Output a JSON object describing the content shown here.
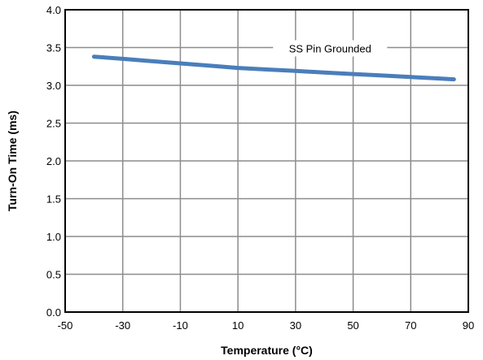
{
  "chart_data": {
    "type": "line",
    "xlabel": "Temperature (°C)",
    "ylabel": "Turn-On Time (ms)",
    "xlim": [
      -50,
      90
    ],
    "ylim": [
      0.0,
      4.0
    ],
    "x_ticks": [
      -50,
      -30,
      -10,
      10,
      30,
      50,
      70,
      90
    ],
    "x_tick_labels": [
      "-50",
      "-30",
      "-10",
      "10",
      "30",
      "50",
      "70",
      "90"
    ],
    "y_ticks": [
      0.0,
      0.5,
      1.0,
      1.5,
      2.0,
      2.5,
      3.0,
      3.5,
      4.0
    ],
    "y_tick_labels": [
      "0.0",
      "0.5",
      "1.0",
      "1.5",
      "2.0",
      "2.5",
      "3.0",
      "3.5",
      "4.0"
    ],
    "grid": true,
    "annotation": "SS Pin Grounded",
    "colors": {
      "series": "#4a7ebb",
      "grid": "#8c8c8c",
      "frame": "#000000"
    },
    "series": [
      {
        "x": [
          -40,
          -30,
          -20,
          -10,
          0,
          10,
          20,
          30,
          40,
          50,
          60,
          70,
          80,
          85
        ],
        "values": [
          3.38,
          3.35,
          3.32,
          3.29,
          3.26,
          3.23,
          3.21,
          3.19,
          3.17,
          3.15,
          3.13,
          3.11,
          3.09,
          3.08
        ]
      }
    ]
  }
}
